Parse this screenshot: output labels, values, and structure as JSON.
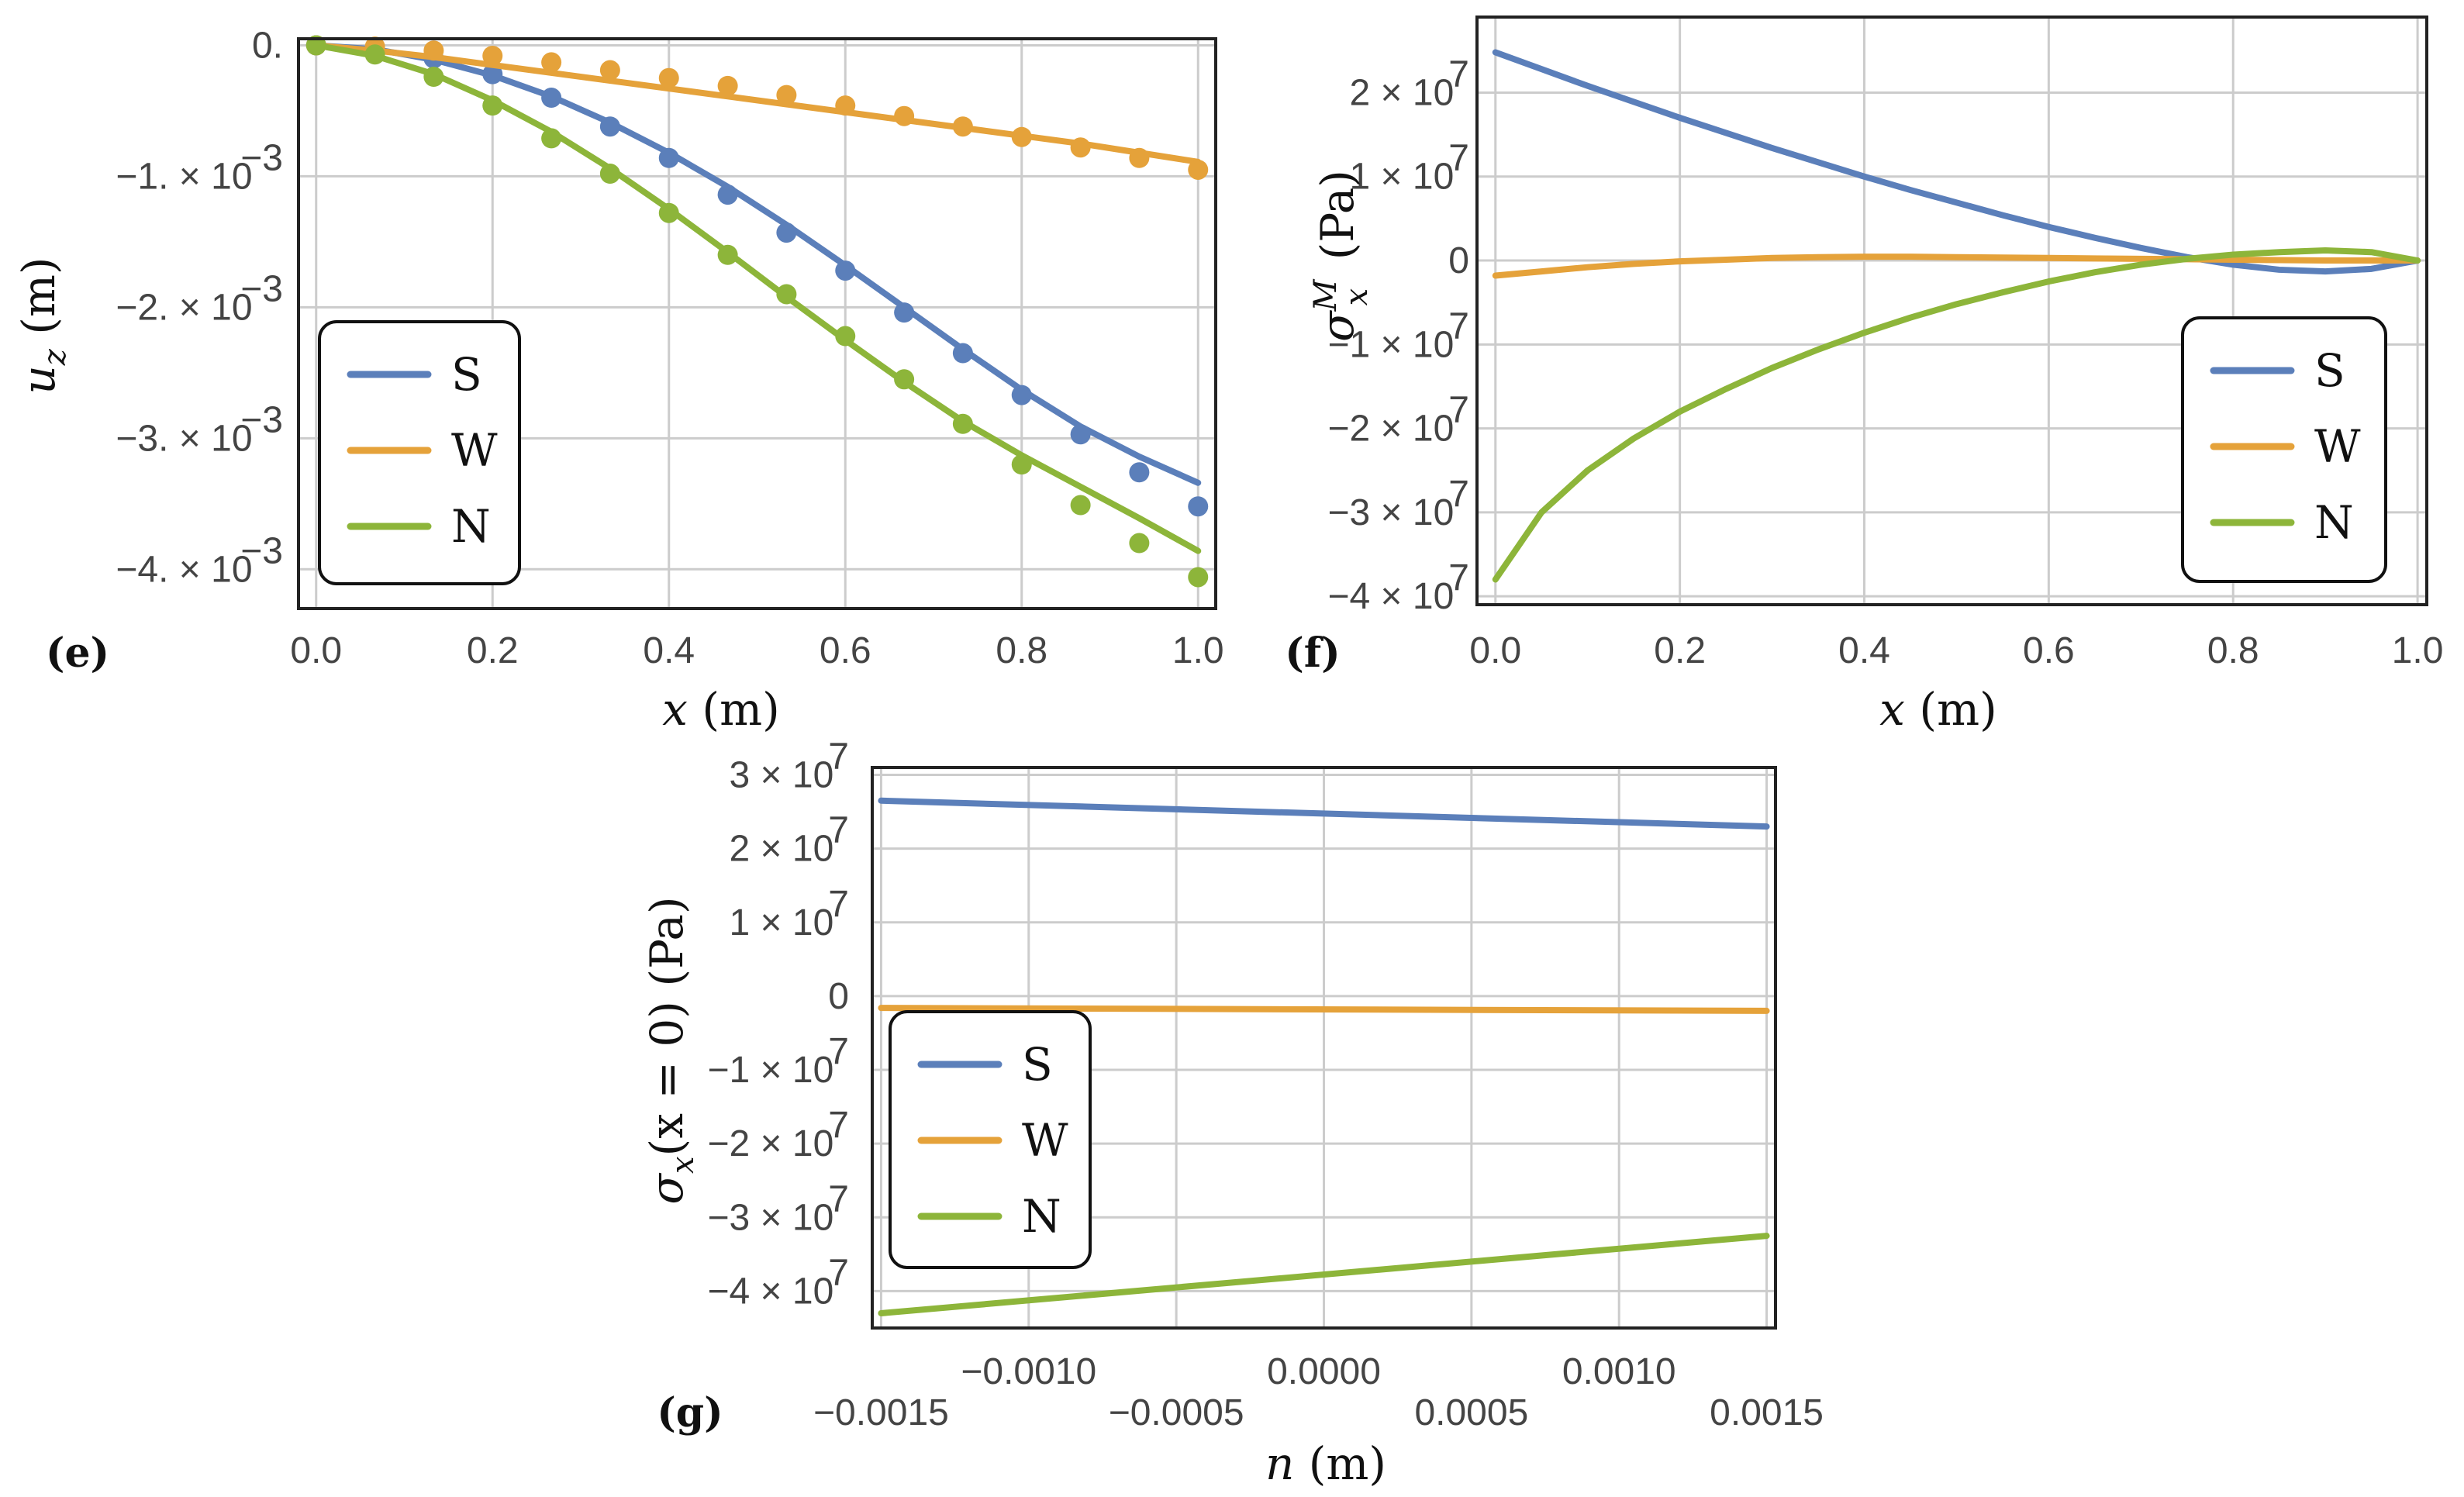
{
  "colors": {
    "S": "#5b7fba",
    "W": "#e5a23a",
    "N": "#8db53a"
  },
  "chart_data": [
    {
      "type": "line",
      "panel_label": "(e)",
      "xlabel": "x (m)",
      "ylabel": "u_z (m)",
      "ylabel_main": "u",
      "ylabel_sub": "z",
      "ylabel_unit": "(m)",
      "xlim": [
        -0.02,
        1.02
      ],
      "ylim": [
        -0.0043,
        5e-05
      ],
      "grid": true,
      "legend_position": "bottom-left",
      "xticks": [
        {
          "v": 0.0,
          "label": "0.0"
        },
        {
          "v": 0.2,
          "label": "0.2"
        },
        {
          "v": 0.4,
          "label": "0.4"
        },
        {
          "v": 0.6,
          "label": "0.6"
        },
        {
          "v": 0.8,
          "label": "0.8"
        },
        {
          "v": 1.0,
          "label": "1.0"
        }
      ],
      "yticks": [
        {
          "v": 0.0,
          "mant": "0.",
          "exp": ""
        },
        {
          "v": -0.001,
          "mant": "−1. × 10",
          "exp": "−3"
        },
        {
          "v": -0.002,
          "mant": "−2. × 10",
          "exp": "−3"
        },
        {
          "v": -0.003,
          "mant": "−3. × 10",
          "exp": "−3"
        },
        {
          "v": -0.004,
          "mant": "−4. × 10",
          "exp": "−3"
        }
      ],
      "x": [
        0.0,
        0.0667,
        0.1333,
        0.2,
        0.2667,
        0.3333,
        0.4,
        0.4667,
        0.5333,
        0.6,
        0.6667,
        0.7333,
        0.8,
        0.8667,
        0.9333,
        1.0
      ],
      "series": [
        {
          "name": "S",
          "key": "S",
          "line": [
            0.0,
            -3e-05,
            -0.00011,
            -0.00023,
            -0.00039,
            -0.00059,
            -0.00082,
            -0.00108,
            -0.00137,
            -0.00168,
            -0.002,
            -0.00232,
            -0.00263,
            -0.00291,
            -0.00314,
            -0.00334
          ],
          "points": [
            0.0,
            -3e-05,
            -0.0001,
            -0.00022,
            -0.0004,
            -0.00062,
            -0.00086,
            -0.00114,
            -0.00143,
            -0.00172,
            -0.00204,
            -0.00235,
            -0.00267,
            -0.00297,
            -0.00326,
            -0.00352
          ]
        },
        {
          "name": "W",
          "key": "W",
          "line": [
            0.0,
            -4e-05,
            -9e-05,
            -0.00015,
            -0.00021,
            -0.00027,
            -0.00033,
            -0.00039,
            -0.00045,
            -0.00051,
            -0.00057,
            -0.00063,
            -0.00069,
            -0.00075,
            -0.00082,
            -0.00089
          ],
          "points": [
            0.0,
            -1e-05,
            -4e-05,
            -8e-05,
            -0.00013,
            -0.00019,
            -0.00025,
            -0.00031,
            -0.00038,
            -0.00046,
            -0.00054,
            -0.00062,
            -0.0007,
            -0.00078,
            -0.00086,
            -0.00095
          ]
        },
        {
          "name": "N",
          "key": "N",
          "line": [
            0.0,
            -8e-05,
            -0.00022,
            -0.00042,
            -0.00066,
            -0.00094,
            -0.00125,
            -0.00158,
            -0.00192,
            -0.00225,
            -0.00257,
            -0.00287,
            -0.00313,
            -0.00337,
            -0.00361,
            -0.00386
          ],
          "points": [
            0.0,
            -7e-05,
            -0.00024,
            -0.00046,
            -0.00071,
            -0.00098,
            -0.00128,
            -0.0016,
            -0.0019,
            -0.00222,
            -0.00255,
            -0.00289,
            -0.0032,
            -0.00351,
            -0.0038,
            -0.00406
          ]
        }
      ]
    },
    {
      "type": "line",
      "panel_label": "(f)",
      "xlabel": "x (m)",
      "ylabel": "σ_x^M (Pa)",
      "ylabel_main": "σ",
      "ylabel_sub": "x",
      "ylabel_sup": "M",
      "ylabel_unit": "(Pa)",
      "xlim": [
        -0.02,
        1.01
      ],
      "ylim": [
        -41000000,
        29000000
      ],
      "grid": true,
      "legend_position": "bottom-right",
      "xticks": [
        {
          "v": 0.0,
          "label": "0.0"
        },
        {
          "v": 0.2,
          "label": "0.2"
        },
        {
          "v": 0.4,
          "label": "0.4"
        },
        {
          "v": 0.6,
          "label": "0.6"
        },
        {
          "v": 0.8,
          "label": "0.8"
        },
        {
          "v": 1.0,
          "label": "1.0"
        }
      ],
      "yticks": [
        {
          "v": 20000000,
          "mant": "2 × 10",
          "exp": "7"
        },
        {
          "v": 10000000,
          "mant": "1 × 10",
          "exp": "7"
        },
        {
          "v": 0,
          "mant": "0",
          "exp": ""
        },
        {
          "v": -10000000,
          "mant": "−1 × 10",
          "exp": "7"
        },
        {
          "v": -20000000,
          "mant": "−2 × 10",
          "exp": "7"
        },
        {
          "v": -30000000,
          "mant": "−3 × 10",
          "exp": "7"
        },
        {
          "v": -40000000,
          "mant": "−4 × 10",
          "exp": "7"
        }
      ],
      "x": [
        0.0,
        0.05,
        0.1,
        0.15,
        0.2,
        0.25,
        0.3,
        0.35,
        0.4,
        0.45,
        0.5,
        0.55,
        0.6,
        0.65,
        0.7,
        0.75,
        0.8,
        0.85,
        0.9,
        0.95,
        1.0
      ],
      "series": [
        {
          "name": "S",
          "key": "S",
          "values": [
            24800000,
            22800000,
            20800000,
            18900000,
            17000000,
            15200000,
            13400000,
            11700000,
            10000000,
            8400000,
            6900000,
            5400000,
            4000000,
            2700000,
            1500000,
            400000,
            -500000,
            -1100000,
            -1300000,
            -1000000,
            0
          ]
        },
        {
          "name": "W",
          "key": "W",
          "values": [
            -1800000,
            -1300000,
            -800000,
            -400000,
            -100000,
            100000,
            300000,
            400000,
            450000,
            450000,
            400000,
            350000,
            300000,
            250000,
            200000,
            150000,
            100000,
            50000,
            0,
            0,
            0
          ]
        },
        {
          "name": "N",
          "key": "N",
          "values": [
            -38000000,
            -30000000,
            -25000000,
            -21200000,
            -18000000,
            -15300000,
            -12800000,
            -10600000,
            -8600000,
            -6800000,
            -5200000,
            -3800000,
            -2500000,
            -1400000,
            -500000,
            200000,
            700000,
            1000000,
            1200000,
            1000000,
            0
          ]
        }
      ]
    },
    {
      "type": "line",
      "panel_label": "(g)",
      "xlabel": "n (m)",
      "ylabel": "σ_x(x = 0) (Pa)",
      "ylabel_main": "σ",
      "ylabel_sub": "x",
      "ylabel_unit": "(x = 0) (Pa)",
      "xlim": [
        -0.00153,
        0.00153
      ],
      "ylim": [
        -45000000,
        31000000
      ],
      "grid": true,
      "legend_position": "bottom-left",
      "xticks": [
        {
          "v": -0.0015,
          "label": "−0.0015",
          "row": 1
        },
        {
          "v": -0.001,
          "label": "−0.0010",
          "row": 0
        },
        {
          "v": -0.0005,
          "label": "−0.0005",
          "row": 1
        },
        {
          "v": 0.0,
          "label": "0.0000",
          "row": 0
        },
        {
          "v": 0.0005,
          "label": "0.0005",
          "row": 1
        },
        {
          "v": 0.001,
          "label": "0.0010",
          "row": 0
        },
        {
          "v": 0.0015,
          "label": "0.0015",
          "row": 1
        }
      ],
      "yticks": [
        {
          "v": 30000000,
          "mant": "3 × 10",
          "exp": "7"
        },
        {
          "v": 20000000,
          "mant": "2 × 10",
          "exp": "7"
        },
        {
          "v": 10000000,
          "mant": "1 × 10",
          "exp": "7"
        },
        {
          "v": 0,
          "mant": "0",
          "exp": ""
        },
        {
          "v": -10000000,
          "mant": "−1 × 10",
          "exp": "7"
        },
        {
          "v": -20000000,
          "mant": "−2 × 10",
          "exp": "7"
        },
        {
          "v": -30000000,
          "mant": "−3 × 10",
          "exp": "7"
        },
        {
          "v": -40000000,
          "mant": "−4 × 10",
          "exp": "7"
        }
      ],
      "x": [
        -0.0015,
        0.0015
      ],
      "series": [
        {
          "name": "S",
          "key": "S",
          "values": [
            26500000,
            23000000
          ]
        },
        {
          "name": "W",
          "key": "W",
          "values": [
            -1600000,
            -2000000
          ]
        },
        {
          "name": "N",
          "key": "N",
          "values": [
            -43000000,
            -32500000
          ]
        }
      ]
    }
  ]
}
